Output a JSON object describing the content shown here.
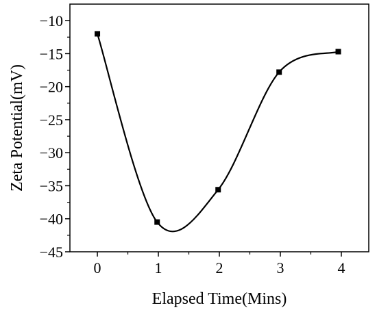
{
  "chart_data": {
    "type": "line",
    "title": "",
    "xlabel": "Elapsed Time(Mins)",
    "ylabel": "Zeta Potential(mV)",
    "xlim": [
      -0.45,
      4.45
    ],
    "ylim": [
      -45,
      -7.5
    ],
    "x_ticks": [
      0,
      1,
      2,
      3,
      4
    ],
    "y_ticks": [
      -45,
      -40,
      -35,
      -30,
      -25,
      -20,
      -15,
      -10
    ],
    "grid": false,
    "legend": "none",
    "series": [
      {
        "x": [
          0,
          0.98,
          1.98,
          2.98,
          3.95
        ],
        "values": [
          -12,
          -40.5,
          -35.6,
          -17.8,
          -14.7
        ],
        "marker": "square",
        "smooth": true
      }
    ],
    "colors": {
      "line": "#000000",
      "axes": "#000000"
    }
  }
}
